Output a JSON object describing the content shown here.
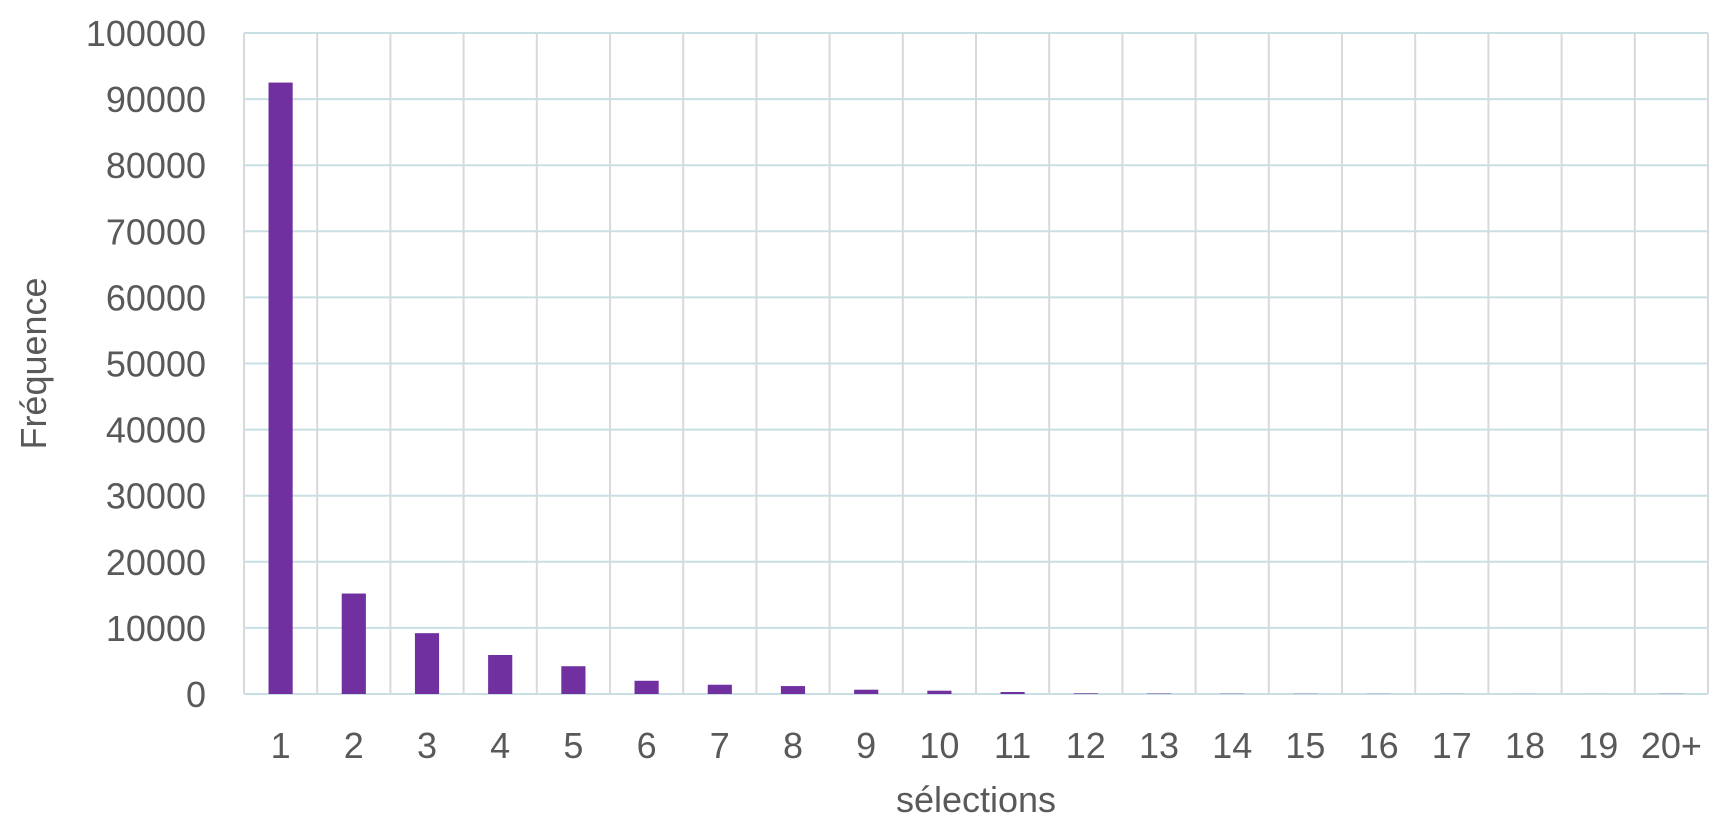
{
  "chart_data": {
    "type": "bar",
    "title": "",
    "xlabel": "sélections",
    "ylabel": "Fréquence",
    "ylim": [
      0,
      100000
    ],
    "yticks": [
      "0",
      "10000",
      "20000",
      "30000",
      "40000",
      "50000",
      "60000",
      "70000",
      "80000",
      "90000",
      "100000"
    ],
    "categories": [
      "1",
      "2",
      "3",
      "4",
      "5",
      "6",
      "7",
      "8",
      "9",
      "10",
      "11",
      "12",
      "13",
      "14",
      "15",
      "16",
      "17",
      "18",
      "19",
      "20+"
    ],
    "values": [
      92500,
      15200,
      9200,
      5900,
      4200,
      2000,
      1400,
      1200,
      650,
      500,
      300,
      100,
      60,
      40,
      30,
      20,
      15,
      10,
      8,
      30
    ],
    "grid": true,
    "legend": "none",
    "colors": {
      "bar": "#7030A0",
      "grid": "#C8E0E4",
      "text": "#595959"
    }
  }
}
